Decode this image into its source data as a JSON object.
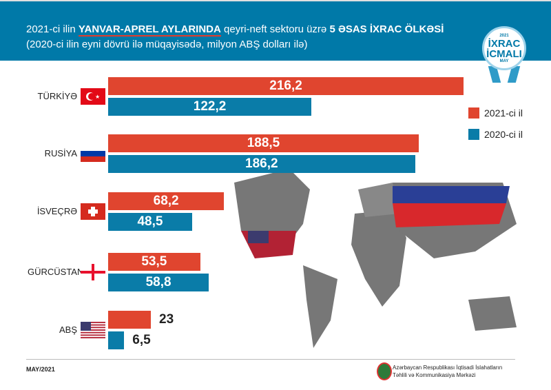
{
  "header": {
    "line1_a": "2021-ci ilin ",
    "line1_b": "YANVAR-APREL AYLARINDA",
    "line1_c": " qeyri-neft sektoru üzrə ",
    "line1_d": "5 ƏSAS İXRAC ÖLKƏSİ",
    "line2": "(2020-ci ilin eyni dövrü ilə müqayisədə, milyon ABŞ dolları ilə)"
  },
  "badge": {
    "year": "2021",
    "line1": "İXRAC",
    "line2": "İCMALI",
    "month": "MAY"
  },
  "chart_data": {
    "type": "bar",
    "orientation": "horizontal",
    "title": "2021-ci ilin YANVAR-APREL AYLARINDA qeyri-neft sektoru üzrə 5 ƏSAS İXRAC ÖLKƏSİ",
    "unit": "milyon ABŞ dolları",
    "categories": [
      "TÜRKİYƏ",
      "RUSİYA",
      "İSVEÇRƏ",
      "GÜRCÜSTAN",
      "ABŞ"
    ],
    "series": [
      {
        "name": "2021-ci il",
        "color": "#e0452f",
        "values": [
          216.2,
          188.5,
          68.2,
          53.5,
          23
        ],
        "labels": [
          "216,2",
          "188,5",
          "68,2",
          "53,5",
          "23"
        ]
      },
      {
        "name": "2020-ci il",
        "color": "#0a7ca8",
        "values": [
          122.2,
          186.2,
          48.5,
          58.8,
          6.5
        ],
        "labels": [
          "122,2",
          "186,2",
          "48,5",
          "58,8",
          "6,5"
        ]
      }
    ],
    "legend": "right"
  },
  "footer": {
    "date": "MAY/2021",
    "org1": "Azərbaycan Respublikası İqtisadi İslahatların",
    "org2": "Təhlili və Kommunikasiya Mərkəzi"
  }
}
